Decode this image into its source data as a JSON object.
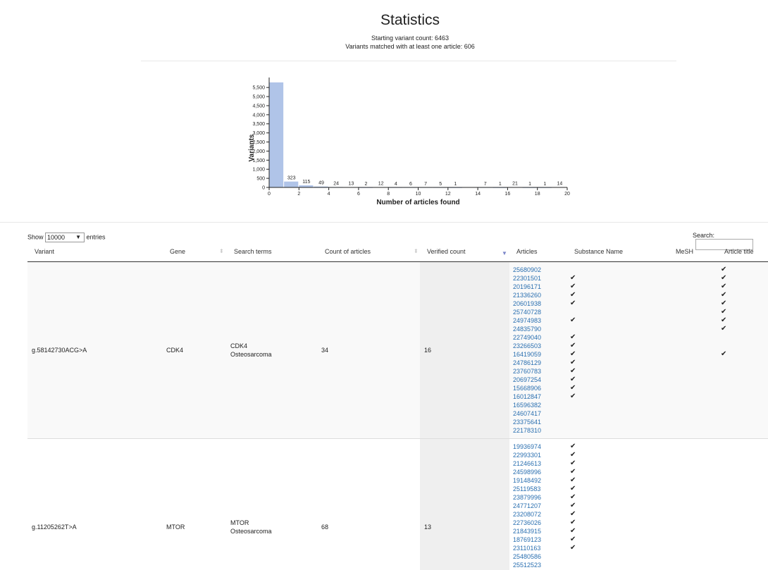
{
  "stats": {
    "title": "Statistics",
    "starting_count": "Starting variant count: 6463",
    "matched_count": "Variants matched with at least one article: 606"
  },
  "chart_data": {
    "type": "bar",
    "xlabel": "Number of articles found",
    "ylabel": "Variants",
    "x_ticks": [
      "0",
      "2",
      "4",
      "6",
      "8",
      "10",
      "12",
      "14",
      "16",
      "18",
      "20"
    ],
    "y_ticks": [
      "0",
      "500",
      "1,000",
      "1,500",
      "2,000",
      "2,500",
      "3,000",
      "3,500",
      "4,000",
      "4,500",
      "5,000",
      "5,500"
    ],
    "xlim": [
      0,
      20
    ],
    "ylim": [
      0,
      5700
    ],
    "bars": [
      {
        "x": 0,
        "value": 5857,
        "label": ""
      },
      {
        "x": 1,
        "value": 323,
        "label": "323"
      },
      {
        "x": 2,
        "value": 115,
        "label": "115"
      },
      {
        "x": 3,
        "value": 49,
        "label": "49"
      },
      {
        "x": 4,
        "value": 24,
        "label": "24"
      },
      {
        "x": 5,
        "value": 13,
        "label": "13"
      },
      {
        "x": 6,
        "value": 2,
        "label": "2"
      },
      {
        "x": 7,
        "value": 12,
        "label": "12"
      },
      {
        "x": 8,
        "value": 4,
        "label": "4"
      },
      {
        "x": 9,
        "value": 6,
        "label": "6"
      },
      {
        "x": 10,
        "value": 7,
        "label": "7"
      },
      {
        "x": 11,
        "value": 5,
        "label": "5"
      },
      {
        "x": 12,
        "value": 1,
        "label": "1"
      },
      {
        "x": 14,
        "value": 7,
        "label": "7"
      },
      {
        "x": 15,
        "value": 1,
        "label": "1"
      },
      {
        "x": 16,
        "value": 21,
        "label": "21"
      },
      {
        "x": 17,
        "value": 1,
        "label": "1"
      },
      {
        "x": 18,
        "value": 1,
        "label": "1"
      },
      {
        "x": 19,
        "value": 14,
        "label": "14"
      }
    ],
    "bar_color": "#b0c4e8"
  },
  "controls": {
    "show_label": "Show",
    "entries_value": "10000",
    "entries_label": "entries",
    "search_label": "Search:"
  },
  "table": {
    "headers": [
      "Variant",
      "Gene",
      "Search terms",
      "Count of articles",
      "Verified count",
      "Articles",
      "Substance Name",
      "MeSH",
      "Article title"
    ],
    "rows": [
      {
        "variant": "g.58142730ACG>A",
        "gene": "CDK4",
        "term1": "CDK4",
        "term2": "Osteosarcoma",
        "count": "34",
        "verified": "16",
        "articles": [
          "25680902",
          "22301501",
          "20196171",
          "21336260",
          "20601938",
          "25740728",
          "24974983",
          "24835790",
          "22749040",
          "23266503",
          "16419059",
          "24786129",
          "23760783",
          "20697254",
          "15668906",
          "16012847",
          "16596382",
          "24607417",
          "23375641",
          "22178310"
        ],
        "substance": [
          "",
          "✔",
          "✔",
          "✔",
          "✔",
          "",
          "✔",
          "",
          "✔",
          "✔",
          "✔",
          "✔",
          "✔",
          "✔",
          "✔",
          "✔",
          "",
          "",
          "",
          ""
        ],
        "title_checks": [
          "✔",
          "✔",
          "✔",
          "✔",
          "✔",
          "✔",
          "✔",
          "✔",
          "",
          "",
          "✔",
          "",
          "",
          "",
          "",
          "",
          "",
          "",
          "",
          ""
        ]
      },
      {
        "variant": "g.11205262T>A",
        "gene": "MTOR",
        "term1": "MTOR",
        "term2": "Osteosarcoma",
        "count": "68",
        "verified": "13",
        "articles": [
          "19936974",
          "22993301",
          "21246613",
          "24598996",
          "19148492",
          "25119583",
          "23879996",
          "24771207",
          "23208072",
          "22736026",
          "21843915",
          "18769123",
          "23110163",
          "25480586",
          "25512523"
        ],
        "substance": [
          "✔",
          "✔",
          "✔",
          "✔",
          "✔",
          "✔",
          "✔",
          "✔",
          "✔",
          "✔",
          "✔",
          "✔",
          "✔",
          "",
          ""
        ],
        "title_checks": []
      }
    ]
  }
}
